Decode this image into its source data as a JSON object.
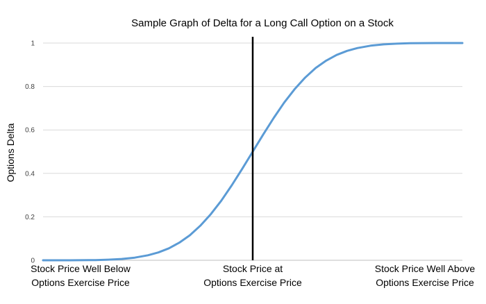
{
  "chart_data": {
    "type": "line",
    "title": "Sample Graph of Delta for a Long Call Option on a Stock",
    "xlabel": "",
    "ylabel": "Options Delta",
    "ylim": [
      0,
      1
    ],
    "xlim": [
      -4,
      4
    ],
    "grid": true,
    "legend": "none",
    "y_ticks": [
      {
        "value": 0,
        "label": "0"
      },
      {
        "value": 0.2,
        "label": "0.2"
      },
      {
        "value": 0.4,
        "label": "0.4"
      },
      {
        "value": 0.6,
        "label": "0.6"
      },
      {
        "value": 0.8,
        "label": "0.8"
      },
      {
        "value": 1,
        "label": "1"
      }
    ],
    "x_ticks": [
      {
        "value": -4,
        "lines": [
          "Stock Price Well Below",
          "Options Exercise Price"
        ]
      },
      {
        "value": 0,
        "lines": [
          "Stock Price at",
          "Options Exercise Price"
        ]
      },
      {
        "value": 4,
        "lines": [
          "Stock Price Well Above",
          "Options Exercise Price"
        ]
      }
    ],
    "reference_line": {
      "x": 0,
      "color": "#000000"
    },
    "series": [
      {
        "color": "#5b9bd5",
        "x": [
          -4,
          -3.5,
          -3,
          -2.75,
          -2.5,
          -2.25,
          -2,
          -1.8,
          -1.6,
          -1.4,
          -1.2,
          -1,
          -0.8,
          -0.6,
          -0.4,
          -0.2,
          0,
          0.2,
          0.4,
          0.6,
          0.8,
          1,
          1.2,
          1.4,
          1.6,
          1.8,
          2,
          2.25,
          2.5,
          2.75,
          3,
          3.5,
          4
        ],
        "values": [
          0.0,
          0.0,
          0.001,
          0.003,
          0.006,
          0.012,
          0.023,
          0.036,
          0.055,
          0.081,
          0.115,
          0.159,
          0.212,
          0.274,
          0.345,
          0.421,
          0.5,
          0.579,
          0.655,
          0.726,
          0.788,
          0.841,
          0.885,
          0.919,
          0.945,
          0.964,
          0.977,
          0.988,
          0.994,
          0.997,
          0.999,
          1.0,
          1.0
        ]
      }
    ]
  }
}
